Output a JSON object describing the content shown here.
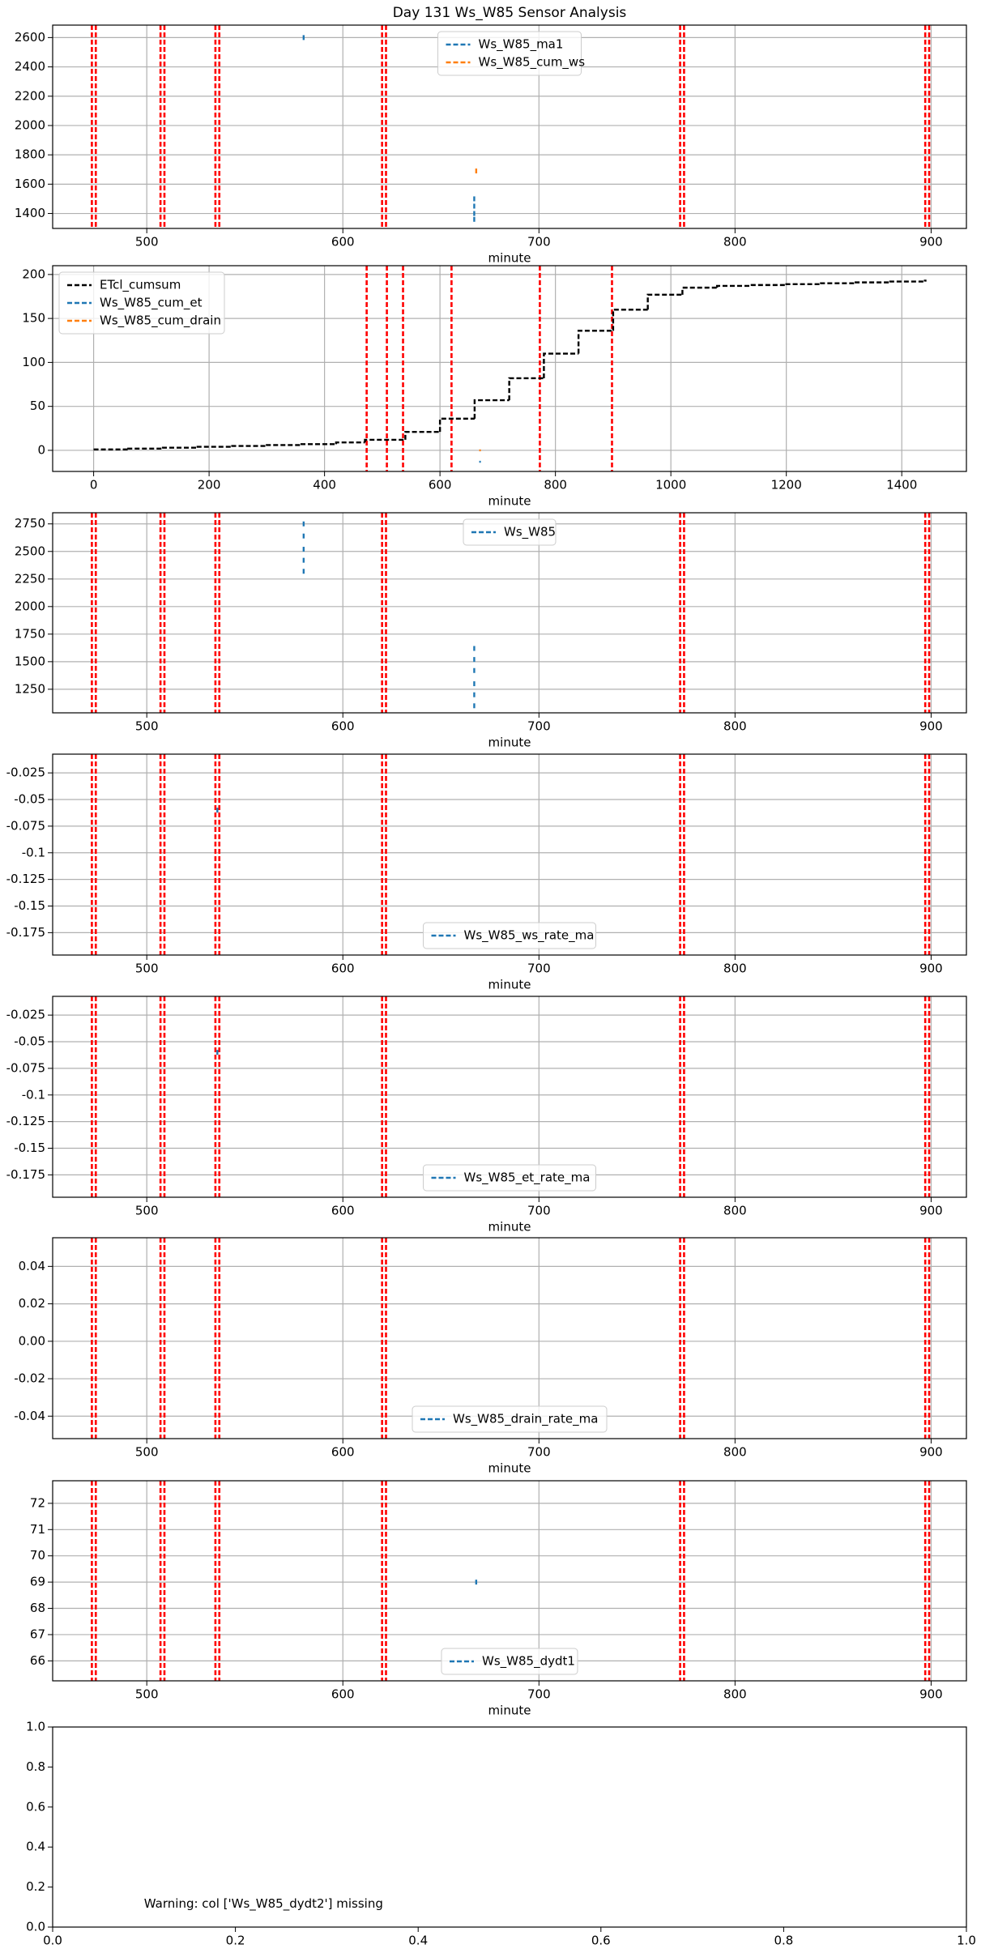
{
  "chart_data": [
    {
      "type": "scatter",
      "title": "Day 131 Ws_W85 Sensor Analysis",
      "xlabel": "minute",
      "legend": "upper center",
      "grid": true,
      "xlim": [
        452,
        918
      ],
      "ylim": [
        1298,
        2685
      ],
      "xticks": [
        500,
        600,
        700,
        800,
        900
      ],
      "yticks": [
        1400,
        1600,
        1800,
        2000,
        2200,
        2400,
        2600
      ],
      "vlines": [
        472,
        474,
        507,
        509,
        535,
        537,
        620,
        622,
        772,
        774,
        897,
        899
      ],
      "vline_color": "#ff0000",
      "series": [
        {
          "name": "Ws_W85_ma1",
          "color": "#1f77b4",
          "x": [
            580,
            667,
            667,
            667,
            667
          ],
          "values": [
            2600,
            1360,
            1400,
            1450,
            1500
          ]
        },
        {
          "name": "Ws_W85_cum_ws",
          "color": "#ff7f0e",
          "x": [
            668
          ],
          "values": [
            1690
          ]
        }
      ]
    },
    {
      "type": "step",
      "xlabel": "minute",
      "legend": "upper left",
      "grid": true,
      "xlim": [
        -71,
        1512
      ],
      "ylim": [
        -24,
        210
      ],
      "xticks": [
        0,
        200,
        400,
        600,
        800,
        1000,
        1200,
        1400
      ],
      "yticks": [
        0,
        50,
        100,
        150,
        200
      ],
      "vlines": [
        473,
        508,
        536,
        620,
        773,
        898
      ],
      "vline_color": "#ff0000",
      "series": [
        {
          "name": "ETcl_cumsum",
          "color": "#000000",
          "x": [
            0,
            60,
            120,
            180,
            240,
            300,
            360,
            420,
            470,
            540,
            600,
            660,
            720,
            780,
            840,
            900,
            960,
            1020,
            1080,
            1140,
            1200,
            1260,
            1320,
            1380,
            1440
          ],
          "values": [
            1,
            2,
            3,
            4,
            5,
            6,
            7,
            9,
            12,
            21,
            36,
            57,
            82,
            110,
            136,
            160,
            177,
            185,
            187,
            188,
            189,
            190,
            191,
            192,
            193
          ]
        },
        {
          "name": "Ws_W85_cum_et",
          "color": "#1f77b4",
          "x": [
            668
          ],
          "values": [
            -13
          ]
        },
        {
          "name": "Ws_W85_cum_drain",
          "color": "#ff7f0e",
          "x": [
            668
          ],
          "values": [
            0
          ]
        }
      ]
    },
    {
      "type": "scatter",
      "xlabel": "minute",
      "legend": "upper center",
      "grid": true,
      "xlim": [
        452,
        918
      ],
      "ylim": [
        1036,
        2851
      ],
      "xticks": [
        500,
        600,
        700,
        800,
        900
      ],
      "yticks": [
        1250,
        1500,
        1750,
        2000,
        2250,
        2500,
        2750
      ],
      "vlines": [
        472,
        474,
        507,
        509,
        535,
        537,
        620,
        622,
        772,
        774,
        897,
        899
      ],
      "vline_color": "#ff0000",
      "series": [
        {
          "name": "Ws_W85",
          "color": "#1f77b4",
          "x": [
            580,
            580,
            580,
            580,
            580,
            667,
            667,
            667,
            667,
            667,
            667
          ],
          "values": [
            2320,
            2420,
            2520,
            2640,
            2750,
            1100,
            1200,
            1300,
            1420,
            1520,
            1620
          ]
        }
      ]
    },
    {
      "type": "scatter",
      "xlabel": "minute",
      "legend": "lower center",
      "grid": true,
      "xlim": [
        452,
        918
      ],
      "ylim": [
        -0.196,
        -0.0074
      ],
      "xticks": [
        500,
        600,
        700,
        800,
        900
      ],
      "yticks": [
        -0.175,
        -0.15,
        -0.125,
        -0.1,
        -0.075,
        -0.05,
        -0.025
      ],
      "vlines": [
        472,
        474,
        507,
        509,
        535,
        537,
        620,
        622,
        772,
        774,
        897,
        899
      ],
      "vline_color": "#ff0000",
      "series": [
        {
          "name": "Ws_W85_ws_rate_ma",
          "color": "#1f77b4",
          "x": [
            536
          ],
          "values": [
            -0.06
          ]
        }
      ]
    },
    {
      "type": "scatter",
      "xlabel": "minute",
      "legend": "lower center",
      "grid": true,
      "xlim": [
        452,
        918
      ],
      "ylim": [
        -0.196,
        -0.0074
      ],
      "xticks": [
        500,
        600,
        700,
        800,
        900
      ],
      "yticks": [
        -0.175,
        -0.15,
        -0.125,
        -0.1,
        -0.075,
        -0.05,
        -0.025
      ],
      "vlines": [
        472,
        474,
        507,
        509,
        535,
        537,
        620,
        622,
        772,
        774,
        897,
        899
      ],
      "vline_color": "#ff0000",
      "series": [
        {
          "name": "Ws_W85_et_rate_ma",
          "color": "#1f77b4",
          "x": [
            536
          ],
          "values": [
            -0.06
          ]
        }
      ]
    },
    {
      "type": "scatter",
      "xlabel": "minute",
      "legend": "lower center",
      "grid": true,
      "xlim": [
        452,
        918
      ],
      "ylim": [
        -0.052,
        0.0553
      ],
      "xticks": [
        500,
        600,
        700,
        800,
        900
      ],
      "yticks": [
        -0.04,
        -0.02,
        {
          "value": 0,
          "label": "0.00"
        },
        0.02,
        0.04
      ],
      "vlines": [
        472,
        474,
        507,
        509,
        535,
        537,
        620,
        622,
        772,
        774,
        897,
        899
      ],
      "vline_color": "#ff0000",
      "series": [
        {
          "name": "Ws_W85_drain_rate_ma",
          "color": "#1f77b4",
          "x": [],
          "values": []
        }
      ]
    },
    {
      "type": "scatter",
      "xlabel": "minute",
      "legend": "lower center",
      "grid": true,
      "xlim": [
        452,
        918
      ],
      "ylim": [
        65.24,
        72.86
      ],
      "xticks": [
        500,
        600,
        700,
        800,
        900
      ],
      "yticks": [
        66,
        67,
        68,
        69,
        70,
        71,
        72
      ],
      "vlines": [
        472,
        474,
        507,
        509,
        535,
        537,
        620,
        622,
        772,
        774,
        897,
        899
      ],
      "vline_color": "#ff0000",
      "series": [
        {
          "name": "Ws_W85_dydt1",
          "color": "#1f77b4",
          "x": [
            668
          ],
          "values": [
            69
          ]
        }
      ]
    },
    {
      "type": "blank",
      "grid": false,
      "annotation": "Warning: col ['Ws_W85_dydt2'] missing",
      "xlim": [
        0,
        1
      ],
      "ylim": [
        0,
        1
      ],
      "xticks": [
        {
          "value": 0,
          "label": "0.0"
        },
        0.2,
        0.4,
        0.6,
        0.8,
        {
          "value": 1,
          "label": "1.0"
        }
      ],
      "yticks": [
        {
          "value": 0,
          "label": "0.0"
        },
        0.2,
        0.4,
        0.6,
        0.8,
        {
          "value": 1,
          "label": "1.0"
        }
      ],
      "vlines": [],
      "series": []
    }
  ]
}
